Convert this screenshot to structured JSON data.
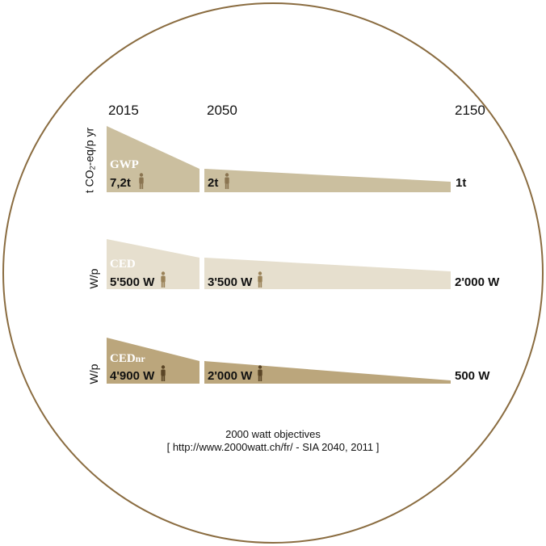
{
  "years": [
    "2015",
    "2050",
    "2150"
  ],
  "colors": {
    "circle": "#8a6c40",
    "gwp": "#cbbf9f",
    "ced": "#e6dfce",
    "cednr": "#bba67c",
    "person_dark": "#5a4526",
    "person_gwp": "#8a7450",
    "person_ced": "#9a8258"
  },
  "rows": [
    {
      "id": "gwp",
      "ylabel_main": "t CO",
      "ylabel_sub": "2",
      "ylabel_rest": "-eq/p yr",
      "tag": "GWP",
      "tag_suffix": "",
      "values": [
        "7,2t",
        "2t",
        "1t"
      ],
      "person_icon": "person-icon"
    },
    {
      "id": "ced",
      "ylabel_main": "W/p",
      "ylabel_sub": "",
      "ylabel_rest": "",
      "tag": "CED",
      "tag_suffix": "",
      "values": [
        "5'500 W",
        "3'500 W",
        "2'000 W"
      ],
      "person_icon": "person-icon"
    },
    {
      "id": "cednr",
      "ylabel_main": "W/p",
      "ylabel_sub": "",
      "ylabel_rest": "",
      "tag": "CED",
      "tag_suffix": "nr",
      "values": [
        "4'900 W",
        "2'000 W",
        "500 W"
      ],
      "person_icon": "person-icon"
    }
  ],
  "caption": {
    "line1": "2000 watt objectives",
    "line2": "[ http://www.2000watt.ch/fr/ - SIA 2040, 2011 ]"
  }
}
